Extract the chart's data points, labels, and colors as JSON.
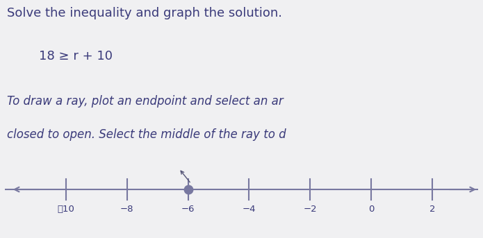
{
  "title_line1": "Solve the inequality and graph the solution.",
  "inequality": "18 ≥ r + 10",
  "instruction_line1": "To draw a ray, plot an endpoint and select an ar",
  "instruction_line2": "closed to open. Select the middle of the ray to d",
  "background_color": "#f0f0f2",
  "number_line_color": "#7878a0",
  "tick_color": "#7878a0",
  "endpoint_value": -6,
  "endpoint_closed": true,
  "ray_direction": "left",
  "x_min": -12,
  "x_max": 3.5,
  "tick_positions": [
    -10,
    -8,
    -6,
    -4,
    -2,
    0,
    2
  ],
  "tick_labels": [
    "⁲10",
    "−8",
    "−6",
    "−4",
    "−2",
    "0",
    "2"
  ],
  "text_color": "#3a3a7a",
  "title_fontsize": 13,
  "instruction_fontsize": 12,
  "inequality_fontsize": 13
}
